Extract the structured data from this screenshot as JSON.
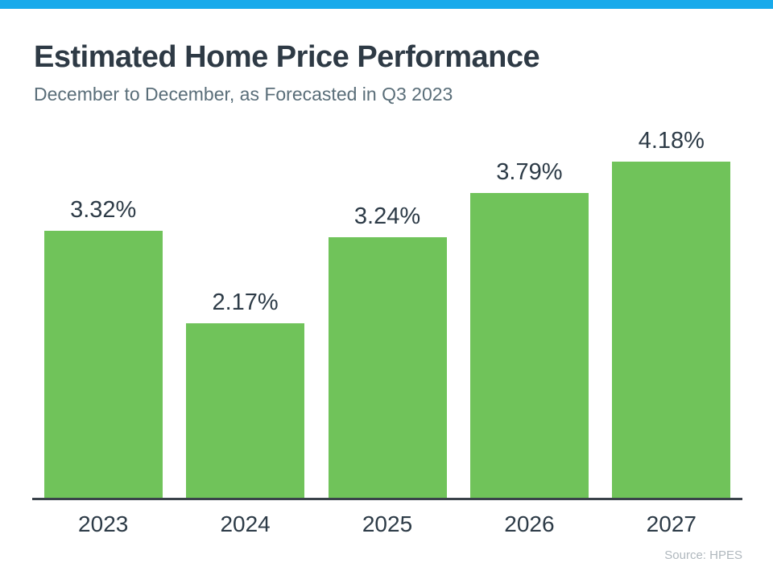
{
  "accent_bar_color": "#18aaeb",
  "header": {
    "title": "Estimated Home Price Performance",
    "subtitle": "December to December, as Forecasted in Q3 2023"
  },
  "chart_data": {
    "type": "bar",
    "categories": [
      "2023",
      "2024",
      "2025",
      "2026",
      "2027"
    ],
    "values": [
      3.32,
      2.17,
      3.24,
      3.79,
      4.18
    ],
    "value_labels": [
      "3.32%",
      "2.17%",
      "3.24%",
      "3.79%",
      "4.18%"
    ],
    "title": "Estimated Home Price Performance",
    "subtitle": "December to December, as Forecasted in Q3 2023",
    "xlabel": "",
    "ylabel": "",
    "ylim": [
      0,
      4.6
    ],
    "grid": false,
    "legend": "none",
    "bar_color": "#70c35a",
    "axis_line_color": "#3a424a",
    "value_label_position": "above-bars"
  },
  "footer": {
    "source": "Source: HPES"
  }
}
